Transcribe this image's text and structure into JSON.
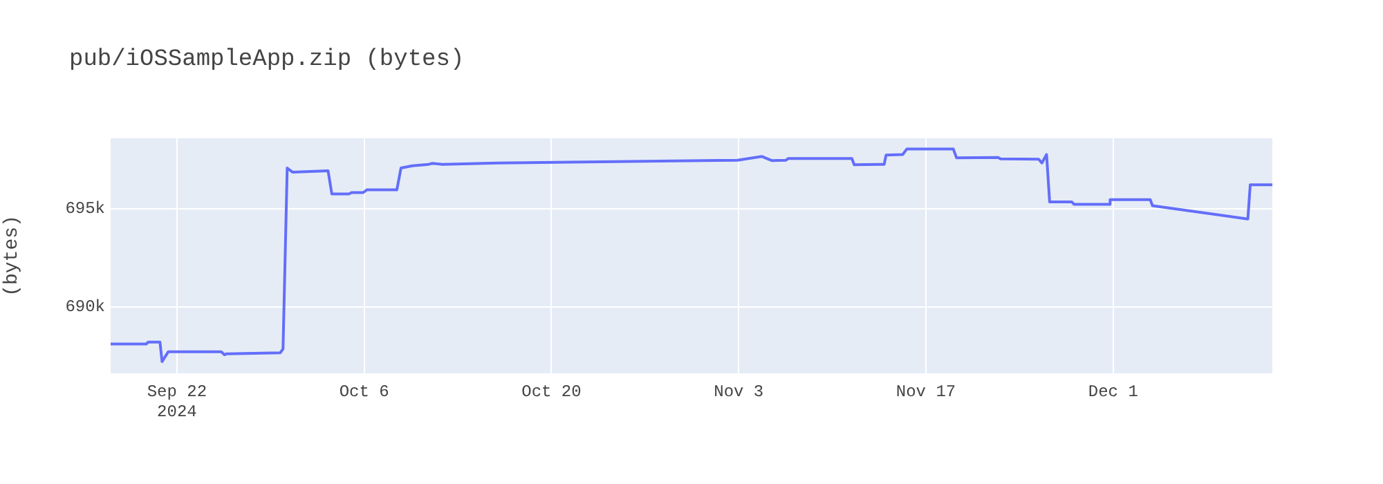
{
  "chart_data": {
    "type": "line",
    "title": "pub/iOSSampleApp.zip (bytes)",
    "ylabel": "(bytes)",
    "x": [
      "2024-09-17T01:00",
      "2024-09-19T17:00",
      "2024-09-19T20:30",
      "2024-09-20T17:30",
      "2024-09-20T21:20",
      "2024-09-21T08:20",
      "2024-09-25T07:30",
      "2024-09-25T13:10",
      "2024-09-25T17:20",
      "2024-09-29T17:20",
      "2024-09-29T22:20",
      "2024-09-30T05:50",
      "2024-09-30T15:50",
      "2024-10-03T07:10",
      "2024-10-03T13:55",
      "2024-10-04T20:25",
      "2024-10-05T01:25",
      "2024-10-05T22:20",
      "2024-10-06T04:50",
      "2024-10-08T10:35",
      "2024-10-08T18:00",
      "2024-10-09T14:40",
      "2024-10-10T19:40",
      "2024-10-11T02:25",
      "2024-10-11T20:35",
      "2024-10-15T23:45",
      "2024-11-02T21:50",
      "2024-11-04T17:45",
      "2024-11-05T12:00",
      "2024-11-06T12:45",
      "2024-11-06T17:00",
      "2024-11-11T11:05",
      "2024-11-11T15:20",
      "2024-11-13T21:05",
      "2024-11-14T00:30",
      "2024-11-15T06:15",
      "2024-11-15T13:40",
      "2024-11-19T01:10",
      "2024-11-19T07:00",
      "2024-11-22T09:35",
      "2024-11-22T13:40",
      "2024-11-25T10:20",
      "2024-11-25T16:05",
      "2024-11-26T00:30",
      "2024-11-26T06:00",
      "2024-11-27T21:50",
      "2024-11-28T02:00",
      "2024-11-30T16:50",
      "2024-11-30T18:30",
      "2024-12-03T18:30",
      "2024-12-03T22:35",
      "2024-12-11T01:40",
      "2024-12-11T06:00",
      "2024-12-12T21:40"
    ],
    "series": [
      {
        "color": "#636efa",
        "values": [
          688100,
          688100,
          688200,
          688200,
          687200,
          687700,
          687700,
          687550,
          687600,
          687650,
          687850,
          697080,
          696870,
          696940,
          695760,
          695760,
          695830,
          695830,
          695970,
          695970,
          697080,
          697200,
          697270,
          697320,
          697270,
          697340,
          697480,
          697670,
          697460,
          697480,
          697570,
          697570,
          697250,
          697270,
          697740,
          697770,
          698050,
          698050,
          697600,
          697620,
          697550,
          697530,
          697340,
          697770,
          695350,
          695350,
          695230,
          695230,
          695470,
          695470,
          695160,
          694480,
          696230,
          696230
        ]
      }
    ],
    "xlim": [
      "2024-09-17T01:00",
      "2024-12-12T21:40"
    ],
    "xticks": [
      {
        "value": "2024-09-22",
        "label": "Sep 22\n2024"
      },
      {
        "value": "2024-10-06",
        "label": "Oct 6"
      },
      {
        "value": "2024-10-20",
        "label": "Oct 20"
      },
      {
        "value": "2024-11-03",
        "label": "Nov 3"
      },
      {
        "value": "2024-11-17",
        "label": "Nov 17"
      },
      {
        "value": "2024-12-01",
        "label": "Dec 1"
      }
    ],
    "ylim": [
      686600,
      698600
    ],
    "yticks": [
      {
        "value": 690000,
        "label": "690k"
      },
      {
        "value": 695000,
        "label": "695k"
      }
    ],
    "grid": true,
    "legend": false,
    "marker": "none",
    "line_style": "solid"
  }
}
